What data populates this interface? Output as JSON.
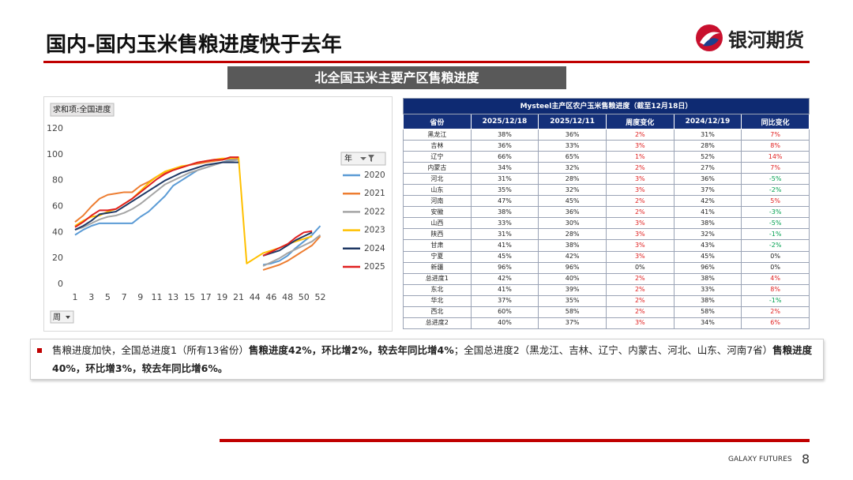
{
  "header": {
    "title": "国内-国内玉米售粮进度快于去年",
    "logo": "银河期货"
  },
  "banner": "北全国玉米主要产区售粮进度",
  "chart_data": {
    "type": "line",
    "title": "求和项:全国进度",
    "legend_title": "年",
    "x_filter": "周",
    "grid": false,
    "categories": [
      1,
      null,
      3,
      null,
      5,
      null,
      7,
      null,
      9,
      null,
      11,
      null,
      13,
      null,
      15,
      null,
      17,
      null,
      19,
      null,
      21,
      null,
      44,
      null,
      46,
      null,
      48,
      null,
      50,
      null,
      52
    ],
    "ylim": [
      0,
      120
    ],
    "yticks": [
      0,
      20,
      40,
      60,
      80,
      100,
      120
    ],
    "series": [
      {
        "name": "2020",
        "color": "#5b9bd5",
        "values": [
          38,
          42,
          45,
          47,
          47,
          47,
          47,
          47,
          52,
          56,
          62,
          68,
          76,
          80,
          84,
          88,
          90,
          92,
          94,
          96,
          97,
          null,
          null,
          15,
          16,
          18,
          22,
          28,
          33,
          38,
          45
        ]
      },
      {
        "name": "2021",
        "color": "#ed7d31",
        "values": [
          48,
          53,
          60,
          66,
          69,
          70,
          71,
          71,
          76,
          79,
          83,
          86,
          88,
          90,
          92,
          93,
          94,
          95,
          96,
          97,
          97,
          null,
          null,
          11,
          13,
          15,
          18,
          22,
          26,
          30,
          37
        ]
      },
      {
        "name": "2022",
        "color": "#a5a5a5",
        "values": [
          42,
          44,
          47,
          50,
          52,
          53,
          55,
          58,
          62,
          67,
          72,
          77,
          80,
          83,
          86,
          88,
          90,
          92,
          94,
          95,
          96,
          null,
          null,
          14,
          17,
          20,
          24,
          27,
          30,
          33,
          38
        ]
      },
      {
        "name": "2023",
        "color": "#ffc000",
        "values": [
          45,
          49,
          52,
          53,
          56,
          58,
          62,
          66,
          72,
          78,
          83,
          87,
          89,
          91,
          92,
          94,
          95,
          96,
          97,
          97,
          98,
          16,
          20,
          24,
          26,
          28,
          31,
          33,
          35,
          37,
          null
        ]
      },
      {
        "name": "2024",
        "color": "#1f3864",
        "values": [
          42,
          45,
          49,
          54,
          55,
          56,
          60,
          64,
          68,
          72,
          76,
          80,
          83,
          86,
          88,
          90,
          92,
          93,
          94,
          94,
          94,
          null,
          null,
          22,
          24,
          26,
          30,
          34,
          37,
          40,
          null
        ]
      },
      {
        "name": "2025",
        "color": "#e02020",
        "values": [
          44,
          48,
          53,
          57,
          57,
          58,
          62,
          66,
          71,
          76,
          81,
          85,
          88,
          90,
          92,
          94,
          95,
          96,
          96,
          98,
          98,
          null,
          null,
          22,
          25,
          28,
          31,
          36,
          40,
          41,
          null
        ]
      }
    ]
  },
  "table": {
    "title": "Mysteel主产区农户玉米售粮进度（截至12月18日）",
    "columns": [
      "省份",
      "2025/12/18",
      "2025/12/11",
      "周度变化",
      "2024/12/19",
      "同比变化"
    ],
    "rows": [
      [
        "黑龙江",
        "38%",
        "36%",
        "2%",
        "31%",
        "7%"
      ],
      [
        "吉林",
        "36%",
        "33%",
        "3%",
        "28%",
        "8%"
      ],
      [
        "辽宁",
        "66%",
        "65%",
        "1%",
        "52%",
        "14%"
      ],
      [
        "内蒙古",
        "34%",
        "32%",
        "2%",
        "27%",
        "7%"
      ],
      [
        "河北",
        "31%",
        "28%",
        "3%",
        "36%",
        "-5%"
      ],
      [
        "山东",
        "35%",
        "32%",
        "3%",
        "37%",
        "-2%"
      ],
      [
        "河南",
        "47%",
        "45%",
        "2%",
        "42%",
        "5%"
      ],
      [
        "安徽",
        "38%",
        "36%",
        "2%",
        "41%",
        "-3%"
      ],
      [
        "山西",
        "33%",
        "30%",
        "3%",
        "38%",
        "-5%"
      ],
      [
        "陕西",
        "31%",
        "28%",
        "3%",
        "32%",
        "-1%"
      ],
      [
        "甘肃",
        "41%",
        "38%",
        "3%",
        "43%",
        "-2%"
      ],
      [
        "宁夏",
        "45%",
        "42%",
        "3%",
        "45%",
        "0%"
      ],
      [
        "新疆",
        "96%",
        "96%",
        "0%",
        "96%",
        "0%"
      ],
      [
        "总进度1",
        "42%",
        "40%",
        "2%",
        "38%",
        "4%"
      ],
      [
        "东北",
        "41%",
        "39%",
        "2%",
        "33%",
        "8%"
      ],
      [
        "华北",
        "37%",
        "35%",
        "2%",
        "38%",
        "-1%"
      ],
      [
        "西北",
        "60%",
        "58%",
        "2%",
        "58%",
        "2%"
      ],
      [
        "总进度2",
        "40%",
        "37%",
        "3%",
        "34%",
        "6%"
      ]
    ]
  },
  "note": {
    "segments": [
      {
        "text": "售粮进度加快，全国总进度1（所有13省份）",
        "bold": false
      },
      {
        "text": "售粮进度42%，环比增2%，较去年同比增4%",
        "bold": true
      },
      {
        "text": "；全国总进度2（黑龙江、吉林、辽宁、内蒙古、河北、山东、河南7省）",
        "bold": false
      },
      {
        "text": "售粮进度40%，环比增3%，较去年同比增6%。",
        "bold": true
      }
    ]
  },
  "footer": {
    "brand": "GALAXY FUTURES",
    "page": "8"
  }
}
